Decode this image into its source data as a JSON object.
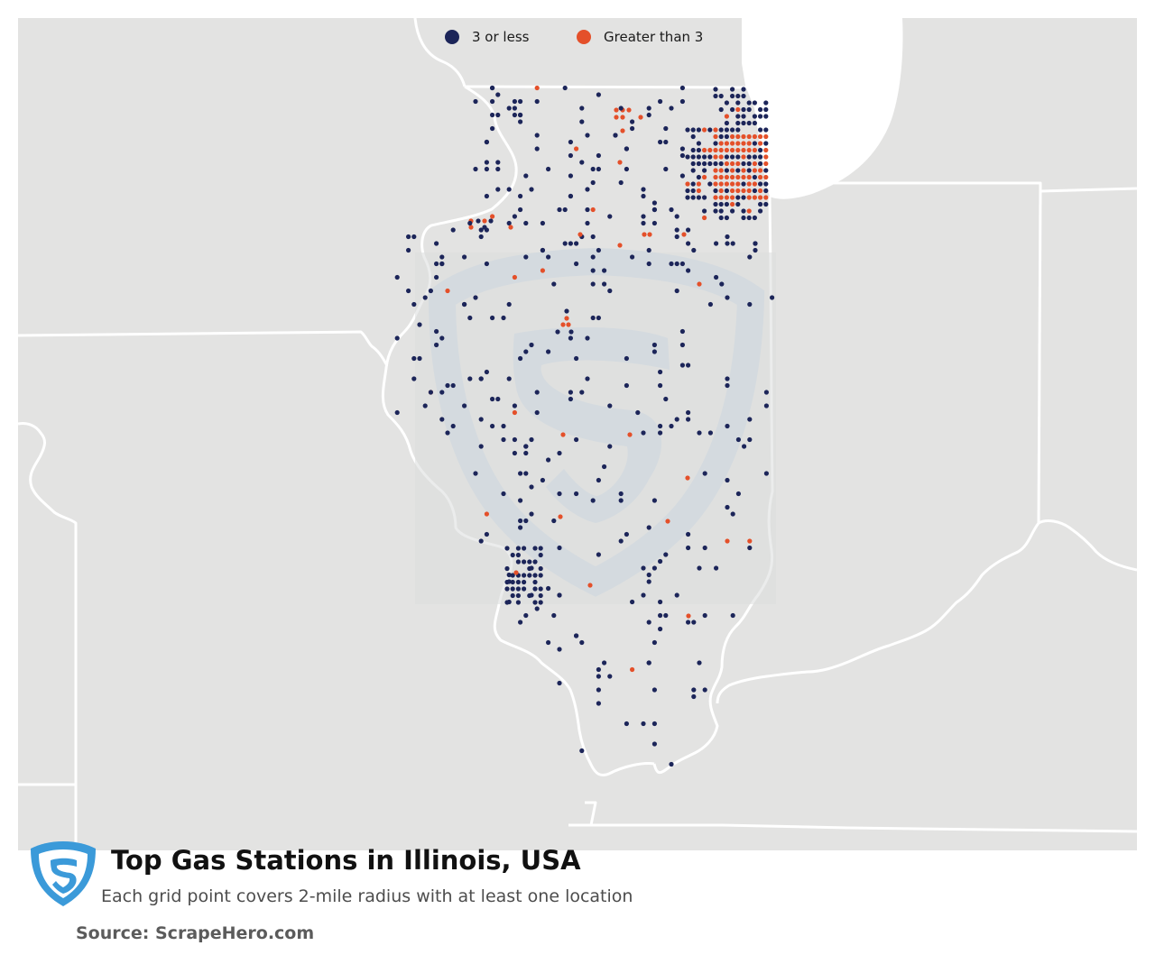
{
  "legend": {
    "items": [
      {
        "label": "3 or less",
        "color": "#1c2559"
      },
      {
        "label": "Greater than 3",
        "color": "#e4502a"
      }
    ]
  },
  "map": {
    "background_color": "#e3e3e2",
    "lake_color": "#ffffff",
    "border_color": "#ffffff",
    "watermark_icon": "scrapehero-shield-icon",
    "low_color": "#1c2559",
    "high_color": "#e4502a"
  },
  "footer": {
    "logo_icon": "scrapehero-logo-icon",
    "logo_color": "#3b9ad9",
    "title": "Top Gas Stations in Illinois, USA",
    "subtitle": "Each grid point covers 2-mile radius with at least one location",
    "source": "Source: ScrapeHero.com"
  }
}
